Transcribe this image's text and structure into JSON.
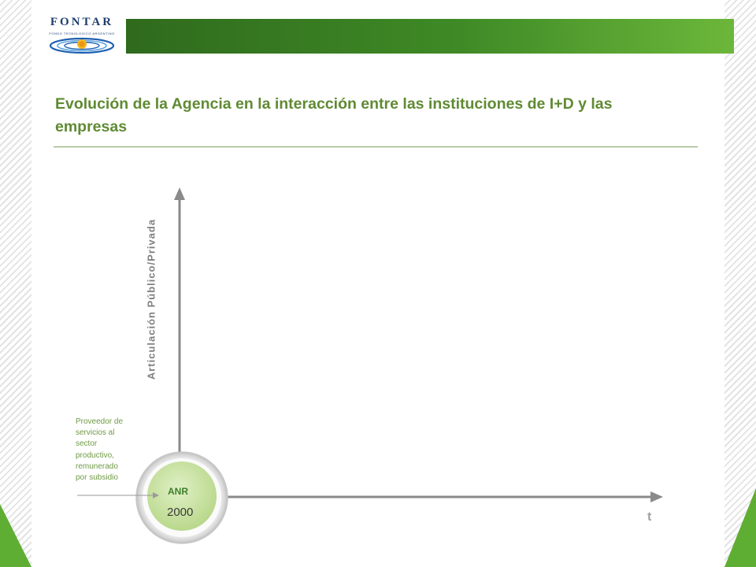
{
  "logo": {
    "name": "FONTAR",
    "subtitle": "FONDO TECNOLOGICO ARGENTINO"
  },
  "header": {
    "bar_color": "#4a9a2c"
  },
  "slide": {
    "title": "Evolución de la Agencia en la interacción entre las instituciones de I+D y las empresas"
  },
  "diagram": {
    "y_axis_label": "Articulación Público/Privada",
    "x_axis_label": "t",
    "stage": {
      "label": "ANR",
      "year": "2000"
    },
    "note": "Proveedor de servicios al sector productivo, remunerado por subsidio"
  },
  "colors": {
    "accent_green": "#5f8a33",
    "title_green": "#5f8a33",
    "circle_fill": "#c6e19a"
  }
}
